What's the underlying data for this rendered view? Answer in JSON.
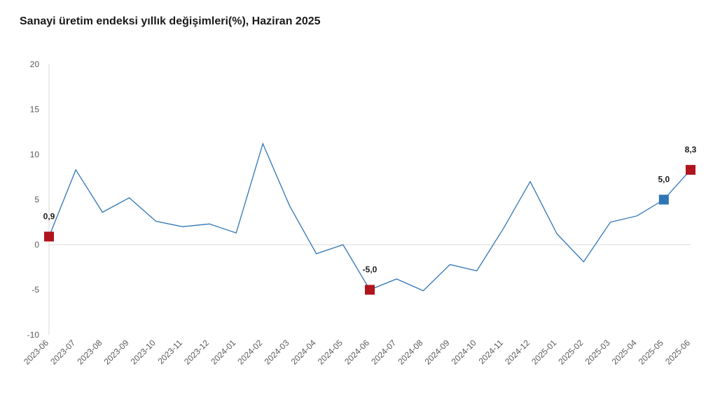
{
  "chart_data": {
    "type": "line",
    "title": "Sanayi üretim endeksi yıllık değişimleri(%), Haziran 2025",
    "categories": [
      "2023-06",
      "2023-07",
      "2023-08",
      "2023-09",
      "2023-10",
      "2023-11",
      "2023-12",
      "2024-01",
      "2024-02",
      "2024-03",
      "2024-04",
      "2024-05",
      "2024-06",
      "2024-07",
      "2024-08",
      "2024-09",
      "2024-10",
      "2024-11",
      "2024-12",
      "2025-01",
      "2025-02",
      "2025-03",
      "2025-04",
      "2025-05",
      "2025-06"
    ],
    "series": [
      {
        "values": [
          0.9,
          8.3,
          3.6,
          5.2,
          2.6,
          2.0,
          2.3,
          1.3,
          11.2,
          4.3,
          -1.0,
          0.0,
          -5.0,
          -3.8,
          -5.1,
          -2.2,
          -2.9,
          1.8,
          7.0,
          1.2,
          -1.9,
          2.5,
          3.2,
          5.0,
          8.3
        ],
        "color": "#2e75b6"
      }
    ],
    "ylim": [
      -10,
      20
    ],
    "yticks": [
      -10,
      -5,
      0,
      5,
      10,
      15,
      20
    ],
    "xlabel": "",
    "ylabel": "",
    "grid": false,
    "highlighted_points": [
      {
        "index": 0,
        "label": "0,9",
        "color": "#b0141c"
      },
      {
        "index": 12,
        "label": "-5,0",
        "color": "#b0141c"
      },
      {
        "index": 23,
        "label": "5,0",
        "color": "#2e75b6"
      },
      {
        "index": 24,
        "label": "8,3",
        "color": "#b0141c"
      }
    ]
  }
}
